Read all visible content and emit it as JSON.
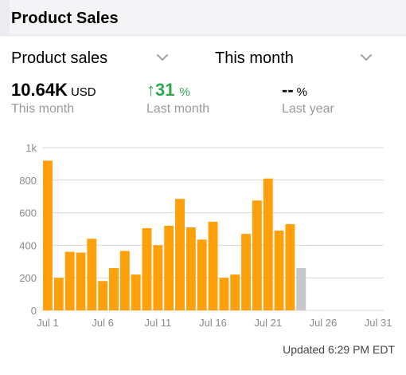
{
  "header": {
    "title": "Product Sales"
  },
  "filters": {
    "metric": "Product sales",
    "period": "This month"
  },
  "stats": [
    {
      "value": "10.64K",
      "unit": "USD",
      "label": "This month"
    },
    {
      "arrow": "↑",
      "value": "31",
      "unit": "%",
      "label": "Last month"
    },
    {
      "value": "--",
      "unit": "%",
      "label": "Last year"
    }
  ],
  "colors": {
    "bar": "#ff9f0a",
    "projected": "#c7c7cc",
    "grid": "#d9d9d9",
    "positive": "#2fa84f"
  },
  "icons": {
    "dropdown": "chevron-down-icon",
    "trend": "arrow-up-icon"
  },
  "chart_data": {
    "type": "bar",
    "categories": [
      "Jul 1",
      "Jul 2",
      "Jul 3",
      "Jul 4",
      "Jul 5",
      "Jul 6",
      "Jul 7",
      "Jul 8",
      "Jul 9",
      "Jul 10",
      "Jul 11",
      "Jul 12",
      "Jul 13",
      "Jul 14",
      "Jul 15",
      "Jul 16",
      "Jul 17",
      "Jul 18",
      "Jul 19",
      "Jul 20",
      "Jul 21",
      "Jul 22",
      "Jul 23",
      "Jul 24"
    ],
    "series": [
      {
        "values": [
          920,
          200,
          360,
          355,
          440,
          180,
          260,
          365,
          220,
          505,
          400,
          520,
          685,
          510,
          435,
          545,
          200,
          220,
          470,
          675,
          810,
          490,
          530,
          null
        ]
      },
      {
        "values": [
          null,
          null,
          null,
          null,
          null,
          null,
          null,
          null,
          null,
          null,
          null,
          null,
          null,
          null,
          null,
          null,
          null,
          null,
          null,
          null,
          null,
          null,
          null,
          260
        ]
      }
    ],
    "xticks": [
      "Jul 1",
      "Jul 6",
      "Jul 11",
      "Jul 16",
      "Jul 21",
      "Jul 26",
      "Jul 31"
    ],
    "yticks": [
      "0",
      "200",
      "400",
      "600",
      "800",
      "1k"
    ],
    "ylim": [
      0,
      1000
    ],
    "days_in_month": 31,
    "grid": true
  },
  "footer": {
    "updated": "Updated 6:29 PM EDT"
  }
}
